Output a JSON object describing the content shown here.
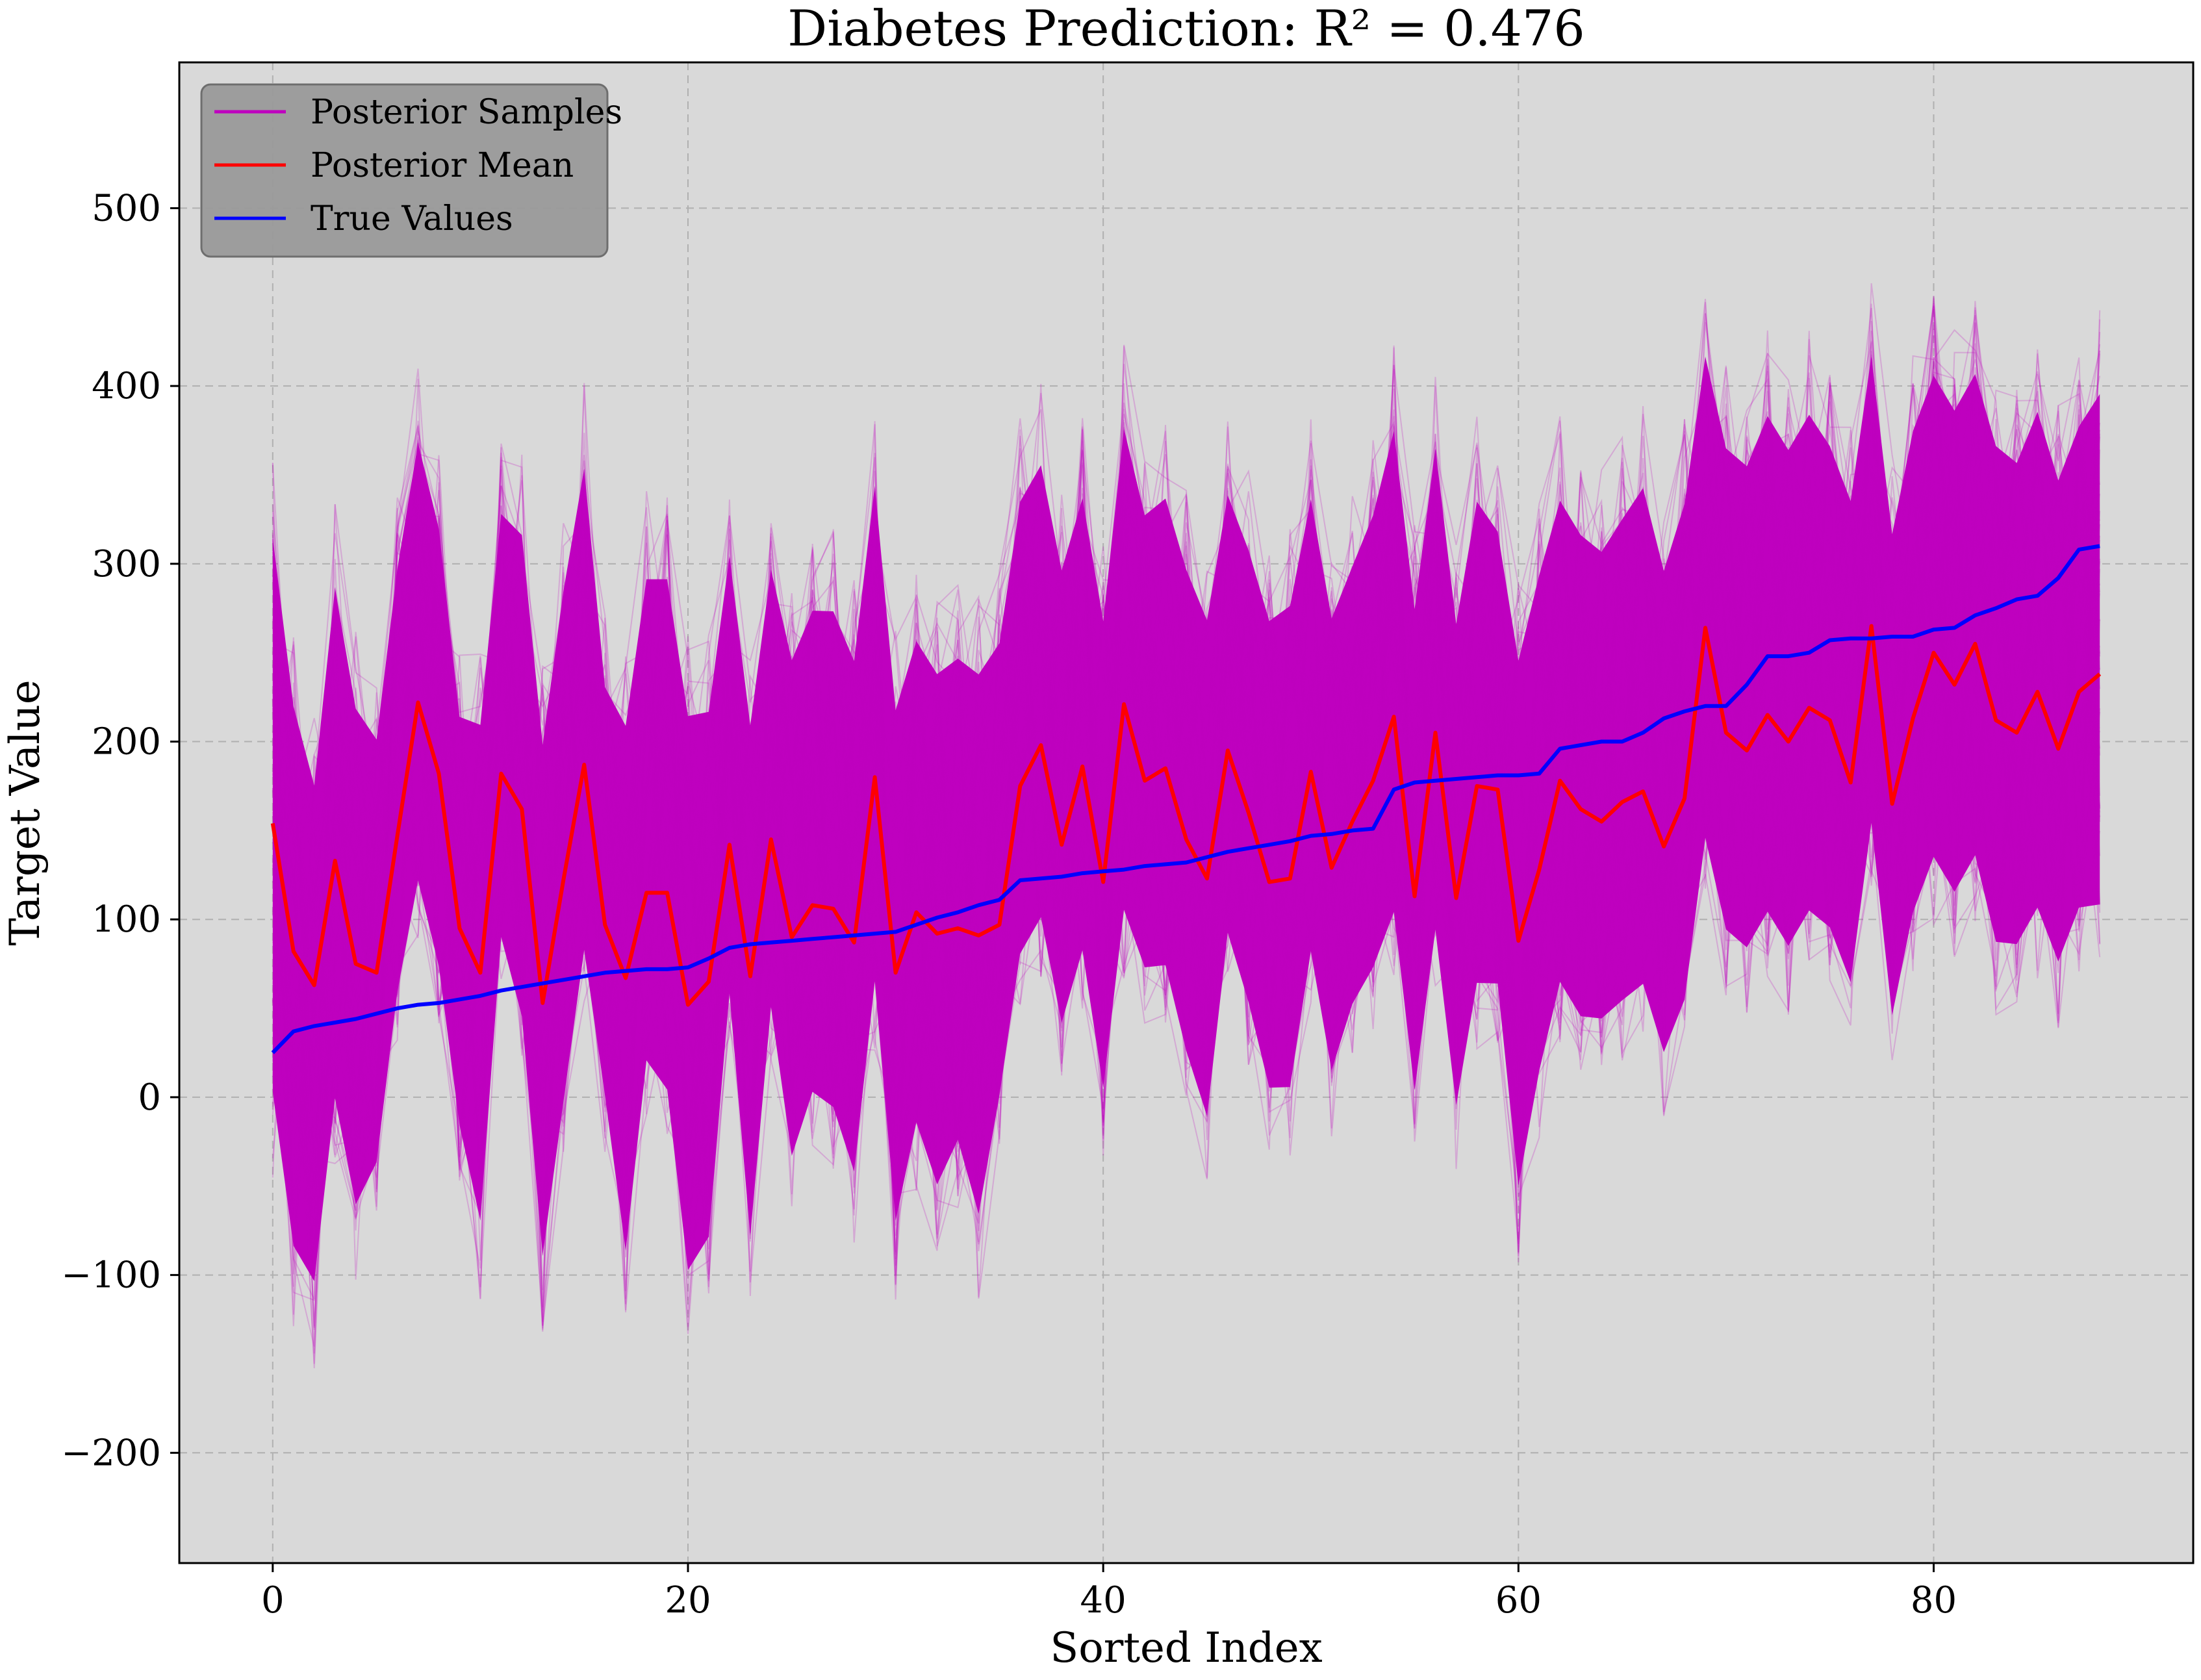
{
  "chart_data": {
    "type": "line",
    "title": "Diabetes Prediction: R² = 0.476",
    "xlabel": "Sorted Index",
    "ylabel": "Target Value",
    "xlim": [
      -4.5,
      92.5
    ],
    "ylim": [
      -262,
      582
    ],
    "xticks": [
      0,
      20,
      40,
      60,
      80
    ],
    "yticks": [
      -200,
      -100,
      0,
      100,
      200,
      300,
      400,
      500
    ],
    "ytick_labels": [
      "−200",
      "−100",
      "0",
      "100",
      "200",
      "300",
      "400",
      "500"
    ],
    "grid": true,
    "legend": {
      "position": "top-left",
      "entries": [
        {
          "label": "Posterior Samples",
          "color": "#bf00bf"
        },
        {
          "label": "Posterior Mean",
          "color": "#ff0000"
        },
        {
          "label": "True Values",
          "color": "#0000ff"
        }
      ]
    },
    "colors": {
      "background": "#d9d9d9",
      "samples": "#bf00bf",
      "mean": "#ff0000",
      "true": "#0000ff"
    },
    "x": [
      0,
      1,
      2,
      3,
      4,
      5,
      6,
      7,
      8,
      9,
      10,
      11,
      12,
      13,
      14,
      15,
      16,
      17,
      18,
      19,
      20,
      21,
      22,
      23,
      24,
      25,
      26,
      27,
      28,
      29,
      30,
      31,
      32,
      33,
      34,
      35,
      36,
      37,
      38,
      39,
      40,
      41,
      42,
      43,
      44,
      45,
      46,
      47,
      48,
      49,
      50,
      51,
      52,
      53,
      54,
      55,
      56,
      57,
      58,
      59,
      60,
      61,
      62,
      63,
      64,
      65,
      66,
      67,
      68,
      69,
      70,
      71,
      72,
      73,
      74,
      75,
      76,
      77,
      78,
      79,
      80,
      81,
      82,
      83,
      84,
      85,
      86,
      87,
      88
    ],
    "series": [
      {
        "name": "Posterior Mean",
        "values": [
          154,
          82,
          63,
          133,
          75,
          70,
          147,
          222,
          182,
          95,
          70,
          182,
          162,
          53,
          122,
          187,
          97,
          67,
          115,
          115,
          52,
          65,
          142,
          68,
          145,
          90,
          108,
          106,
          87,
          180,
          70,
          104,
          92,
          95,
          91,
          97,
          175,
          198,
          142,
          186,
          121,
          221,
          178,
          185,
          145,
          123,
          195,
          160,
          121,
          123,
          183,
          129,
          155,
          178,
          214,
          113,
          205,
          112,
          175,
          173,
          88,
          128,
          178,
          162,
          155,
          166,
          172,
          141,
          168,
          264,
          205,
          195,
          215,
          200,
          219,
          212,
          177,
          265,
          165,
          213,
          250,
          232,
          255,
          212,
          205,
          228,
          196,
          228,
          238
        ]
      },
      {
        "name": "True Values",
        "values": [
          25,
          37,
          40,
          42,
          44,
          47,
          50,
          52,
          53,
          55,
          57,
          60,
          62,
          64,
          66,
          68,
          70,
          71,
          72,
          72,
          73,
          78,
          84,
          86,
          87,
          88,
          89,
          90,
          91,
          92,
          93,
          97,
          101,
          104,
          108,
          111,
          122,
          123,
          124,
          126,
          127,
          128,
          130,
          131,
          132,
          135,
          138,
          140,
          142,
          144,
          147,
          148,
          150,
          151,
          173,
          177,
          178,
          179,
          180,
          181,
          181,
          182,
          196,
          198,
          200,
          200,
          205,
          213,
          217,
          220,
          220,
          232,
          248,
          248,
          250,
          257,
          258,
          258,
          259,
          259,
          263,
          264,
          271,
          275,
          280,
          282,
          292,
          308,
          310
        ]
      }
    ],
    "posterior_band": {
      "name": "Posterior Samples",
      "sample_count": 60,
      "lower": [
        -30,
        -120,
        -140,
        -30,
        -90,
        -60,
        40,
        100,
        50,
        -40,
        -100,
        70,
        20,
        -120,
        -30,
        60,
        -20,
        -120,
        0,
        -20,
        -130,
        -110,
        40,
        -110,
        30,
        -60,
        -20,
        -30,
        -70,
        40,
        -100,
        -40,
        -80,
        -50,
        -100,
        -20,
        60,
        80,
        20,
        60,
        -20,
        80,
        50,
        50,
        0,
        -40,
        70,
        30,
        -20,
        -20,
        60,
        -10,
        30,
        50,
        80,
        -20,
        70,
        -30,
        40,
        40,
        -80,
        -10,
        40,
        20,
        20,
        30,
        40,
        0,
        30,
        120,
        70,
        60,
        80,
        60,
        80,
        70,
        40,
        130,
        20,
        80,
        110,
        90,
        110,
        60,
        60,
        80,
        50,
        80,
        80
      ],
      "upper": [
        350,
        250,
        200,
        320,
        250,
        230,
        330,
        400,
        350,
        240,
        240,
        360,
        350,
        230,
        320,
        390,
        260,
        240,
        330,
        330,
        250,
        250,
        340,
        240,
        330,
        280,
        310,
        310,
        280,
        380,
        250,
        290,
        270,
        280,
        270,
        290,
        370,
        390,
        330,
        370,
        300,
        410,
        360,
        370,
        330,
        300,
        370,
        340,
        300,
        310,
        370,
        300,
        330,
        360,
        410,
        310,
        400,
        300,
        370,
        350,
        280,
        330,
        370,
        350,
        340,
        360,
        380,
        330,
        370,
        450,
        400,
        390,
        420,
        400,
        420,
        400,
        370,
        450,
        350,
        410,
        440,
        420,
        440,
        400,
        390,
        420,
        380,
        410,
        430
      ]
    }
  }
}
